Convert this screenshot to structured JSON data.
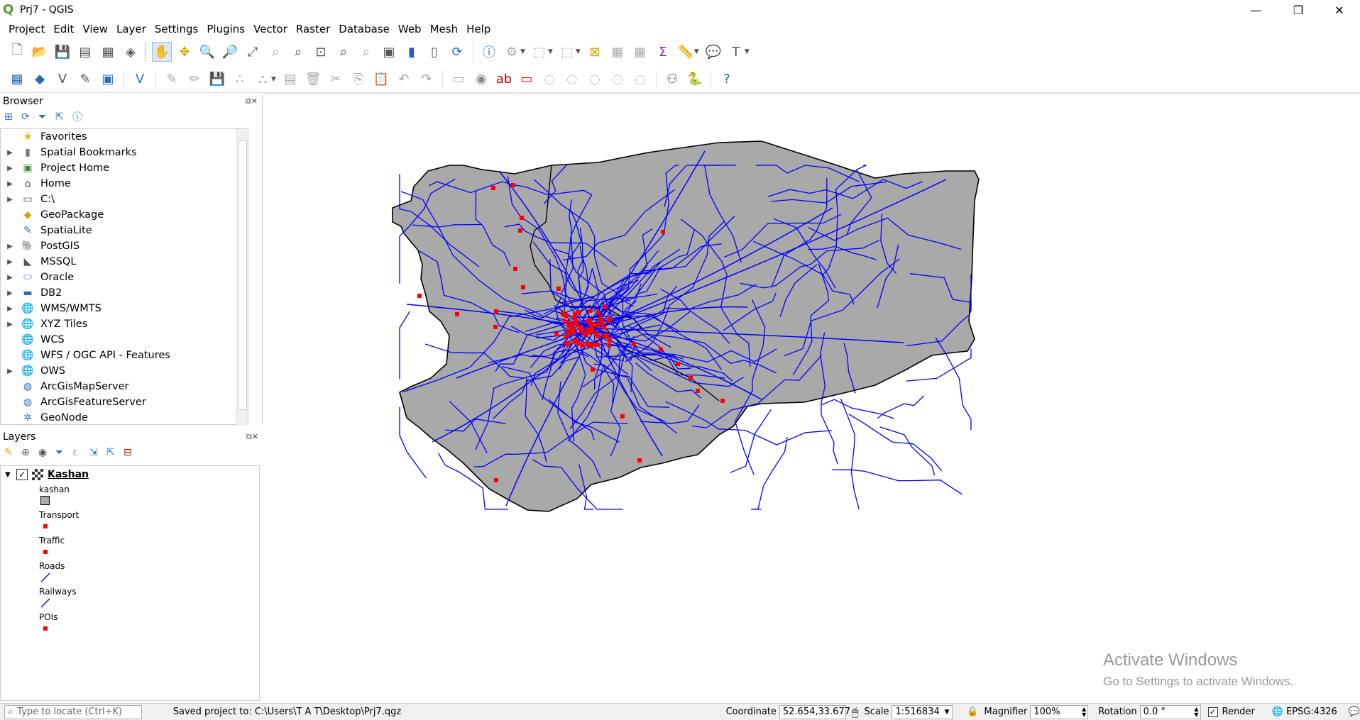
{
  "window": {
    "title": "Prj7 - QGIS",
    "minimize": "—",
    "maximize": "❐",
    "close": "✕"
  },
  "menu": [
    "Project",
    "Edit",
    "View",
    "Layer",
    "Settings",
    "Plugins",
    "Vector",
    "Raster",
    "Database",
    "Web",
    "Mesh",
    "Help"
  ],
  "browser": {
    "title": "Browser",
    "items": [
      {
        "label": "Favorites",
        "icon": "star-icon",
        "expandable": false
      },
      {
        "label": "Spatial Bookmarks",
        "icon": "bookmark-icon",
        "expandable": true
      },
      {
        "label": "Project Home",
        "icon": "project-home-icon",
        "expandable": true
      },
      {
        "label": "Home",
        "icon": "home-icon",
        "expandable": true
      },
      {
        "label": "C:\\",
        "icon": "folder-icon",
        "expandable": true
      },
      {
        "label": "GeoPackage",
        "icon": "geopackage-icon",
        "expandable": false
      },
      {
        "label": "SpatiaLite",
        "icon": "spatialite-icon",
        "expandable": false
      },
      {
        "label": "PostGIS",
        "icon": "postgis-icon",
        "expandable": true
      },
      {
        "label": "MSSQL",
        "icon": "mssql-icon",
        "expandable": true
      },
      {
        "label": "Oracle",
        "icon": "oracle-icon",
        "expandable": true
      },
      {
        "label": "DB2",
        "icon": "db2-icon",
        "expandable": true
      },
      {
        "label": "WMS/WMTS",
        "icon": "globe-icon",
        "expandable": true
      },
      {
        "label": "XYZ Tiles",
        "icon": "globe-icon",
        "expandable": true
      },
      {
        "label": "WCS",
        "icon": "globe-icon",
        "expandable": false
      },
      {
        "label": "WFS / OGC API - Features",
        "icon": "globe-icon",
        "expandable": false
      },
      {
        "label": "OWS",
        "icon": "globe-icon",
        "expandable": true
      },
      {
        "label": "ArcGisMapServer",
        "icon": "arcgis-icon",
        "expandable": false
      },
      {
        "label": "ArcGisFeatureServer",
        "icon": "arcgis-icon",
        "expandable": false
      },
      {
        "label": "GeoNode",
        "icon": "geonode-icon",
        "expandable": false
      }
    ]
  },
  "layers": {
    "title": "Layers",
    "group": "Kashan",
    "entries": [
      {
        "label": "kashan",
        "symbol": "polygon"
      },
      {
        "label": "Transport",
        "symbol": "point"
      },
      {
        "label": "Traffic",
        "symbol": "point"
      },
      {
        "label": "Roads",
        "symbol": "line"
      },
      {
        "label": "Railways",
        "symbol": "line"
      },
      {
        "label": "POIs",
        "symbol": "point"
      }
    ]
  },
  "colors": {
    "polygon_fill": "#a9a9a9",
    "roads": "#0000ff",
    "points": "#ff0000",
    "boundary": "#000000"
  },
  "status": {
    "locate_placeholder": "Type to locate (Ctrl+K)",
    "message": "Saved project to: C:\\Users\\T A T\\Desktop\\Prj7.qgz",
    "coordinate_label": "Coordinate",
    "coordinate_value": "52.654,33.677",
    "scale_label": "Scale",
    "scale_value": "1:516834",
    "magnifier_label": "Magnifier",
    "magnifier_value": "100%",
    "rotation_label": "Rotation",
    "rotation_value": "0.0 °",
    "render_label": "Render",
    "crs": "EPSG:4326"
  },
  "watermark": {
    "line1": "Activate Windows",
    "line2": "Go to Settings to activate Windows."
  }
}
